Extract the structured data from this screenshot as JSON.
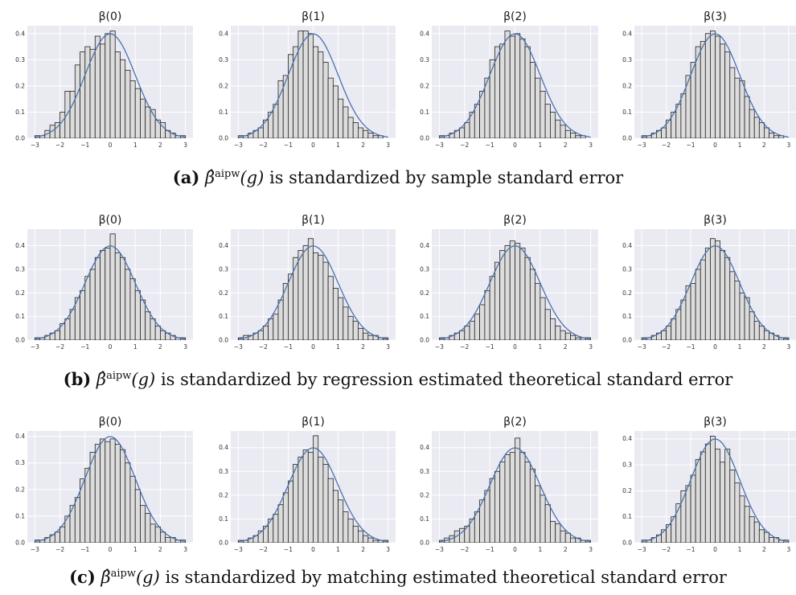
{
  "chart_data": [
    {
      "row": "a",
      "caption": {
        "label": "(a)",
        "estimator": "β̂",
        "superscript": "aipw",
        "argument": "(g)",
        "text": "is standardized by sample standard error"
      },
      "subplots": [
        {
          "type": "bar",
          "title": "β(0)",
          "bin_range": [
            -3,
            3
          ],
          "values": [
            0.01,
            0.01,
            0.03,
            0.05,
            0.06,
            0.1,
            0.18,
            0.18,
            0.28,
            0.33,
            0.35,
            0.34,
            0.39,
            0.36,
            0.4,
            0.41,
            0.33,
            0.3,
            0.26,
            0.22,
            0.19,
            0.15,
            0.12,
            0.11,
            0.07,
            0.06,
            0.03,
            0.02,
            0.01,
            0.01
          ],
          "curve": "normal pdf",
          "xlim": [
            -3.3,
            3.3
          ],
          "ylim": [
            0,
            0.43
          ],
          "xticks": [
            -3,
            -2,
            -1,
            0,
            1,
            2,
            3
          ],
          "yticks": [
            0.0,
            0.1,
            0.2,
            0.3,
            0.4
          ]
        },
        {
          "type": "bar",
          "title": "β(1)",
          "bin_range": [
            -3,
            3
          ],
          "values": [
            0.01,
            0.01,
            0.02,
            0.03,
            0.04,
            0.07,
            0.1,
            0.13,
            0.22,
            0.24,
            0.32,
            0.35,
            0.41,
            0.41,
            0.4,
            0.35,
            0.33,
            0.29,
            0.23,
            0.2,
            0.15,
            0.12,
            0.08,
            0.06,
            0.04,
            0.03,
            0.02,
            0.01,
            0.01,
            0.0
          ],
          "curve": "normal pdf",
          "xlim": [
            -3.3,
            3.3
          ],
          "ylim": [
            0,
            0.43
          ],
          "xticks": [
            -3,
            -2,
            -1,
            0,
            1,
            2,
            3
          ],
          "yticks": [
            0.0,
            0.1,
            0.2,
            0.3,
            0.4
          ]
        },
        {
          "type": "bar",
          "title": "β(2)",
          "bin_range": [
            -3,
            3
          ],
          "values": [
            0.01,
            0.01,
            0.02,
            0.03,
            0.04,
            0.06,
            0.1,
            0.13,
            0.18,
            0.23,
            0.3,
            0.35,
            0.36,
            0.41,
            0.39,
            0.4,
            0.38,
            0.35,
            0.29,
            0.23,
            0.18,
            0.13,
            0.1,
            0.07,
            0.05,
            0.03,
            0.02,
            0.01,
            0.01,
            0.0
          ],
          "curve": "normal pdf",
          "xlim": [
            -3.3,
            3.3
          ],
          "ylim": [
            0,
            0.43
          ],
          "xticks": [
            -3,
            -2,
            -1,
            0,
            1,
            2,
            3
          ],
          "yticks": [
            0.0,
            0.1,
            0.2,
            0.3,
            0.4
          ]
        },
        {
          "type": "bar",
          "title": "β(3)",
          "bin_range": [
            -3,
            3
          ],
          "values": [
            0.01,
            0.01,
            0.02,
            0.03,
            0.04,
            0.07,
            0.1,
            0.13,
            0.17,
            0.24,
            0.29,
            0.35,
            0.37,
            0.4,
            0.41,
            0.39,
            0.36,
            0.33,
            0.27,
            0.23,
            0.22,
            0.16,
            0.11,
            0.08,
            0.06,
            0.04,
            0.02,
            0.01,
            0.01,
            0.0
          ],
          "curve": "normal pdf",
          "xlim": [
            -3.3,
            3.3
          ],
          "ylim": [
            0,
            0.43
          ],
          "xticks": [
            -3,
            -2,
            -1,
            0,
            1,
            2,
            3
          ],
          "yticks": [
            0.0,
            0.1,
            0.2,
            0.3,
            0.4
          ]
        }
      ]
    },
    {
      "row": "b",
      "caption": {
        "label": "(b)",
        "estimator": "β̂",
        "superscript": "aipw",
        "argument": "(g)",
        "text": "is standardized by regression estimated theoretical standard error"
      },
      "subplots": [
        {
          "type": "bar",
          "title": "β(0)",
          "bin_range": [
            -3,
            3
          ],
          "values": [
            0.01,
            0.01,
            0.02,
            0.03,
            0.04,
            0.07,
            0.09,
            0.13,
            0.18,
            0.21,
            0.27,
            0.3,
            0.35,
            0.38,
            0.39,
            0.45,
            0.37,
            0.35,
            0.3,
            0.26,
            0.21,
            0.17,
            0.12,
            0.09,
            0.06,
            0.04,
            0.03,
            0.02,
            0.01,
            0.01
          ],
          "curve": "normal pdf",
          "xlim": [
            -3.3,
            3.3
          ],
          "ylim": [
            0,
            0.47
          ],
          "xticks": [
            -3,
            -2,
            -1,
            0,
            1,
            2,
            3
          ],
          "yticks": [
            0.0,
            0.1,
            0.2,
            0.3,
            0.4
          ]
        },
        {
          "type": "bar",
          "title": "β(1)",
          "bin_range": [
            -3,
            3
          ],
          "values": [
            0.01,
            0.02,
            0.02,
            0.03,
            0.04,
            0.06,
            0.09,
            0.11,
            0.17,
            0.24,
            0.28,
            0.35,
            0.38,
            0.4,
            0.43,
            0.37,
            0.36,
            0.33,
            0.27,
            0.22,
            0.18,
            0.14,
            0.1,
            0.08,
            0.05,
            0.03,
            0.02,
            0.02,
            0.01,
            0.01
          ],
          "curve": "normal pdf",
          "xlim": [
            -3.3,
            3.3
          ],
          "ylim": [
            0,
            0.47
          ],
          "xticks": [
            -3,
            -2,
            -1,
            0,
            1,
            2,
            3
          ],
          "yticks": [
            0.0,
            0.1,
            0.2,
            0.3,
            0.4
          ]
        },
        {
          "type": "bar",
          "title": "β(2)",
          "bin_range": [
            -3,
            3
          ],
          "values": [
            0.01,
            0.01,
            0.02,
            0.03,
            0.04,
            0.06,
            0.08,
            0.11,
            0.15,
            0.21,
            0.27,
            0.33,
            0.38,
            0.4,
            0.42,
            0.41,
            0.39,
            0.35,
            0.3,
            0.24,
            0.18,
            0.13,
            0.09,
            0.06,
            0.04,
            0.03,
            0.02,
            0.01,
            0.01,
            0.01
          ],
          "curve": "normal pdf",
          "xlim": [
            -3.3,
            3.3
          ],
          "ylim": [
            0,
            0.47
          ],
          "xticks": [
            -3,
            -2,
            -1,
            0,
            1,
            2,
            3
          ],
          "yticks": [
            0.0,
            0.1,
            0.2,
            0.3,
            0.4
          ]
        },
        {
          "type": "bar",
          "title": "β(3)",
          "bin_range": [
            -3,
            3
          ],
          "values": [
            0.01,
            0.01,
            0.02,
            0.03,
            0.04,
            0.06,
            0.09,
            0.13,
            0.17,
            0.23,
            0.24,
            0.3,
            0.34,
            0.39,
            0.43,
            0.42,
            0.38,
            0.35,
            0.29,
            0.25,
            0.2,
            0.18,
            0.12,
            0.08,
            0.06,
            0.04,
            0.03,
            0.02,
            0.01,
            0.01
          ],
          "curve": "normal pdf",
          "xlim": [
            -3.3,
            3.3
          ],
          "ylim": [
            0,
            0.47
          ],
          "xticks": [
            -3,
            -2,
            -1,
            0,
            1,
            2,
            3
          ],
          "yticks": [
            0.0,
            0.1,
            0.2,
            0.3,
            0.4
          ]
        }
      ]
    },
    {
      "row": "c",
      "caption": {
        "label": "(c)",
        "estimator": "β̂",
        "superscript": "aipw",
        "argument": "(g)",
        "text": "is standardized by matching estimated theoretical standard error"
      },
      "subplots": [
        {
          "type": "bar",
          "title": "β(0)",
          "bin_range": [
            -3,
            3
          ],
          "values": [
            0.01,
            0.01,
            0.02,
            0.03,
            0.04,
            0.06,
            0.1,
            0.14,
            0.17,
            0.24,
            0.28,
            0.34,
            0.37,
            0.39,
            0.38,
            0.39,
            0.37,
            0.35,
            0.3,
            0.25,
            0.2,
            0.14,
            0.11,
            0.07,
            0.06,
            0.04,
            0.02,
            0.02,
            0.01,
            0.01
          ],
          "curve": "normal pdf",
          "xlim": [
            -3.3,
            3.3
          ],
          "ylim": [
            0,
            0.42
          ],
          "xticks": [
            -3,
            -2,
            -1,
            0,
            1,
            2,
            3
          ],
          "yticks": [
            0.0,
            0.1,
            0.2,
            0.3,
            0.4
          ]
        },
        {
          "type": "bar",
          "title": "β(1)",
          "bin_range": [
            -3,
            3
          ],
          "values": [
            0.01,
            0.01,
            0.02,
            0.03,
            0.05,
            0.07,
            0.1,
            0.12,
            0.16,
            0.21,
            0.26,
            0.33,
            0.36,
            0.39,
            0.38,
            0.45,
            0.36,
            0.33,
            0.27,
            0.22,
            0.18,
            0.13,
            0.1,
            0.07,
            0.05,
            0.03,
            0.02,
            0.01,
            0.01,
            0.01
          ],
          "curve": "normal pdf",
          "xlim": [
            -3.3,
            3.3
          ],
          "ylim": [
            0,
            0.47
          ],
          "xticks": [
            -3,
            -2,
            -1,
            0,
            1,
            2,
            3
          ],
          "yticks": [
            0.0,
            0.1,
            0.2,
            0.3,
            0.4
          ]
        },
        {
          "type": "bar",
          "title": "β(2)",
          "bin_range": [
            -3,
            3
          ],
          "values": [
            0.01,
            0.02,
            0.03,
            0.05,
            0.06,
            0.07,
            0.1,
            0.13,
            0.18,
            0.22,
            0.27,
            0.3,
            0.34,
            0.37,
            0.38,
            0.44,
            0.38,
            0.34,
            0.31,
            0.24,
            0.2,
            0.16,
            0.09,
            0.08,
            0.05,
            0.04,
            0.02,
            0.02,
            0.01,
            0.01
          ],
          "curve": "normal pdf",
          "xlim": [
            -3.3,
            3.3
          ],
          "ylim": [
            0,
            0.47
          ],
          "xticks": [
            -3,
            -2,
            -1,
            0,
            1,
            2,
            3
          ],
          "yticks": [
            0.0,
            0.1,
            0.2,
            0.3,
            0.4
          ]
        },
        {
          "type": "bar",
          "title": "β(3)",
          "bin_range": [
            -3,
            3
          ],
          "values": [
            0.01,
            0.01,
            0.02,
            0.03,
            0.05,
            0.07,
            0.1,
            0.15,
            0.2,
            0.22,
            0.26,
            0.32,
            0.35,
            0.38,
            0.41,
            0.36,
            0.31,
            0.36,
            0.28,
            0.23,
            0.18,
            0.14,
            0.1,
            0.08,
            0.05,
            0.04,
            0.02,
            0.02,
            0.01,
            0.01
          ],
          "curve": "normal pdf",
          "xlim": [
            -3.3,
            3.3
          ],
          "ylim": [
            0,
            0.43
          ],
          "xticks": [
            -3,
            -2,
            -1,
            0,
            1,
            2,
            3
          ],
          "yticks": [
            0.0,
            0.1,
            0.2,
            0.3,
            0.4
          ]
        }
      ]
    }
  ],
  "colors": {
    "panel_bg": "#eaeaf2",
    "grid": "#ffffff",
    "bar_fill": "#dcdcdc",
    "bar_edge": "#222222",
    "curve": "#4c72b0"
  }
}
